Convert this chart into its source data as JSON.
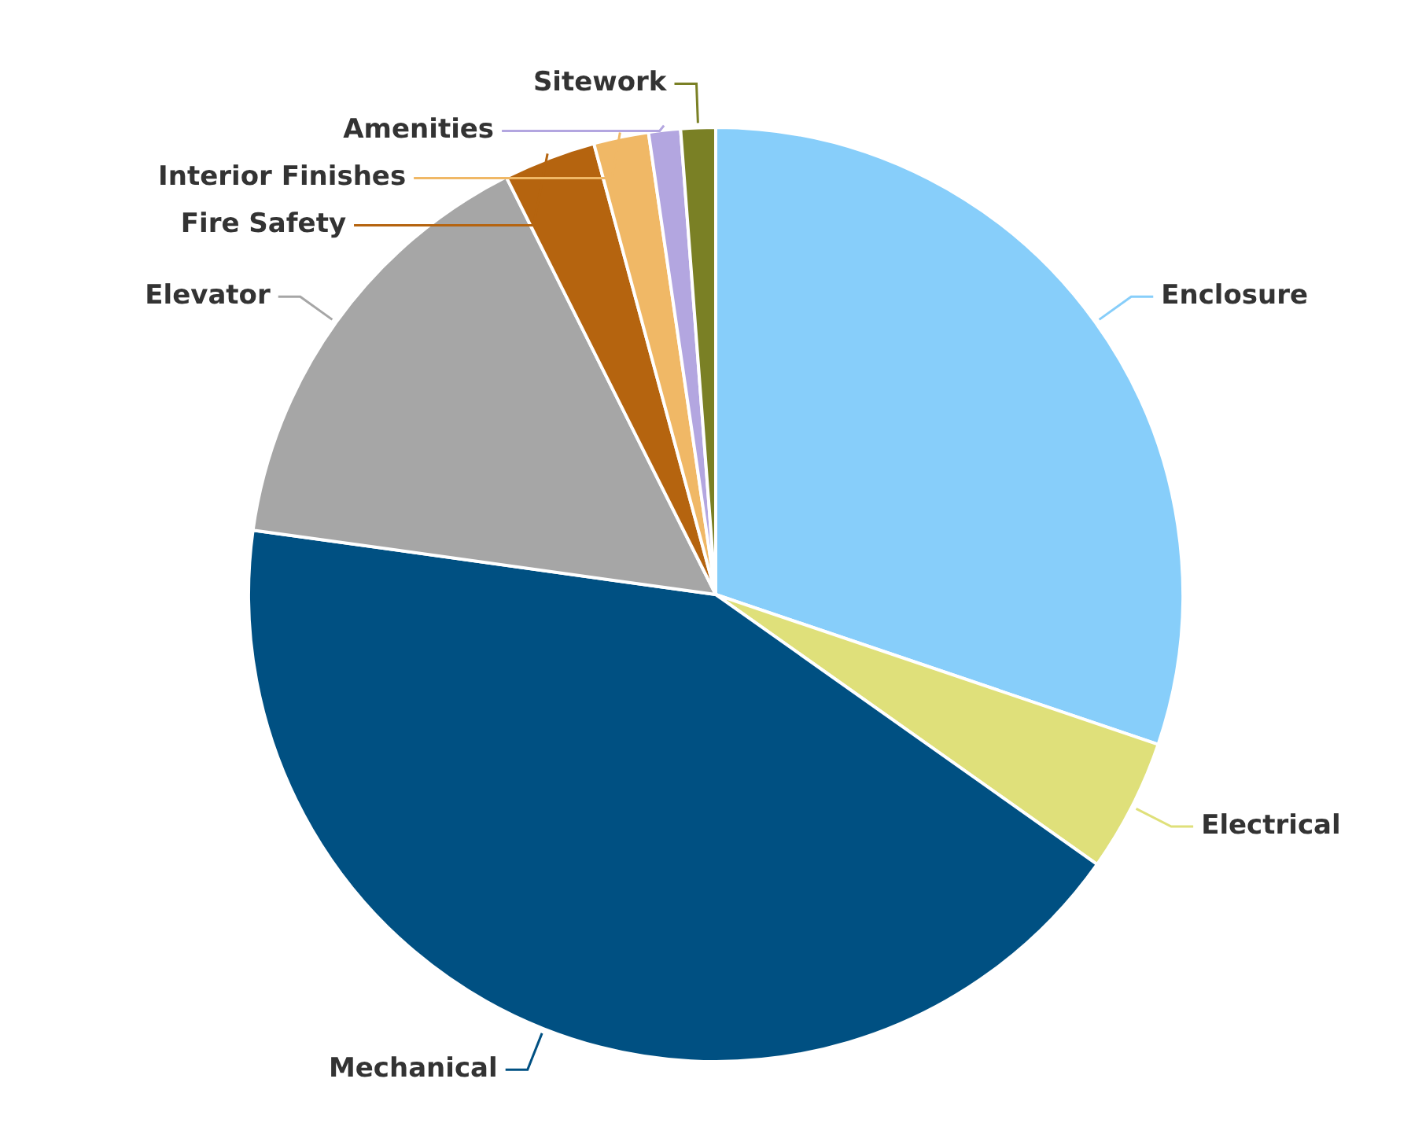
{
  "chart_data": {
    "type": "pie",
    "categories": [
      "Enclosure",
      "Electrical",
      "Mechanical",
      "Elevator",
      "Fire Safety",
      "Interior Finishes",
      "Amenities",
      "Sitework"
    ],
    "values": [
      30.2,
      4.6,
      42.4,
      15.4,
      3.2,
      1.9,
      1.1,
      1.2
    ],
    "colors": [
      "#87cefa",
      "#dfe07a",
      "#005082",
      "#a6a6a6",
      "#b5640f",
      "#f0b866",
      "#b3a6e0",
      "#7a8025"
    ]
  }
}
